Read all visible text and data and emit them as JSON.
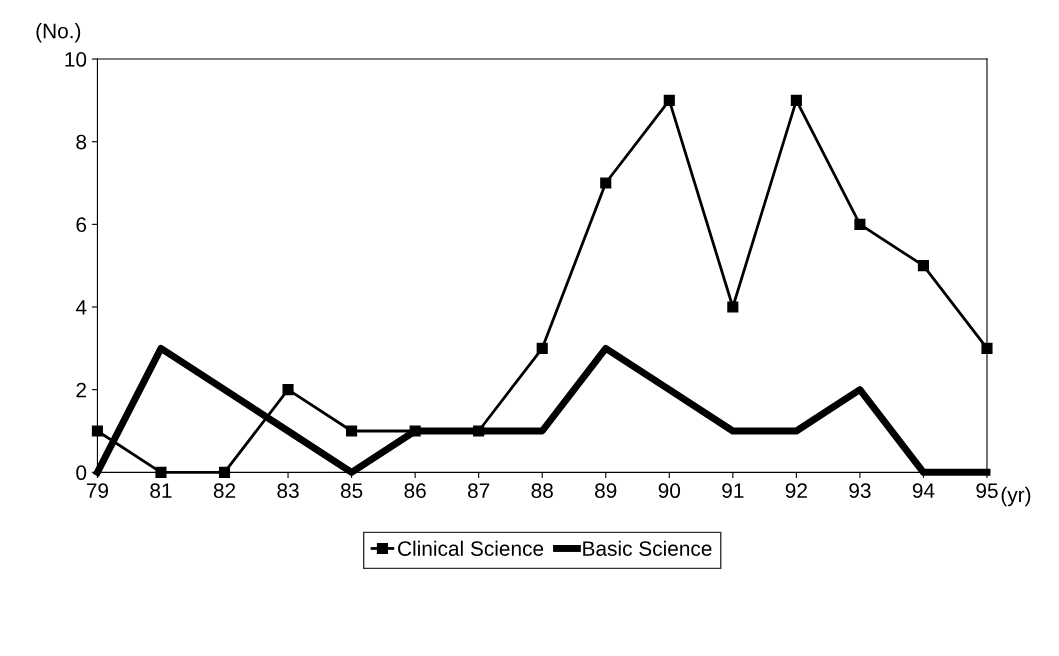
{
  "chart_data": {
    "type": "line",
    "ylabel": "(No.)",
    "xlabel": "(yr)",
    "categories": [
      "79",
      "81",
      "82",
      "83",
      "85",
      "86",
      "87",
      "88",
      "89",
      "90",
      "91",
      "92",
      "93",
      "94",
      "95"
    ],
    "ylim": [
      0,
      10
    ],
    "yticks": [
      0,
      2,
      4,
      6,
      8,
      10
    ],
    "grid": false,
    "legend": "bottom",
    "line_style": "solid",
    "series": [
      {
        "name": "Clinical Science",
        "color": "#000000",
        "marker": "square",
        "values": [
          1,
          0,
          0,
          2,
          1,
          1,
          1,
          3,
          7,
          9,
          4,
          9,
          6,
          5,
          3
        ]
      },
      {
        "name": "Basic Science",
        "color": "#000000",
        "marker": "none",
        "values": [
          0,
          3,
          2,
          1,
          0,
          1,
          1,
          1,
          3,
          2,
          1,
          1,
          2,
          0,
          0
        ]
      }
    ]
  }
}
